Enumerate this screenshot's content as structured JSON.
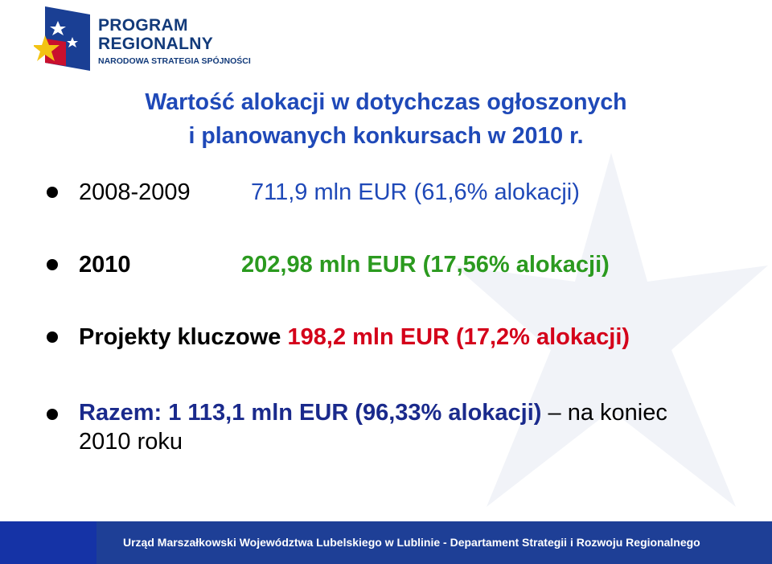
{
  "logo": {
    "line1": "PROGRAM",
    "line2": "REGIONALNY",
    "line3": "NARODOWA STRATEGIA SPÓJNOŚCI"
  },
  "title": {
    "line1": "Wartość alokacji w dotychczas ogłoszonych",
    "line2": "i planowanych konkursach w 2010 r."
  },
  "items": [
    {
      "label": "2008-2009",
      "value": "711,9 mln EUR (61,6% alokacji)"
    },
    {
      "label": "2010",
      "value": "202,98 mln EUR (17,56% alokacji)"
    },
    {
      "label": "Projekty kluczowe",
      "value": "198,2 mln EUR (17,2% alokacji)"
    },
    {
      "label": "Razem: 1 113,1 mln EUR (96,33% alokacji)",
      "suffix": " – na koniec",
      "line2": "2010 roku"
    }
  ],
  "footer": {
    "text": "Urząd Marszałkowski Województwa Lubelskiego w Lublinie - Departament Strategii i Rozwoju Regionalnego"
  },
  "colors": {
    "title": "#1f49b8",
    "value_2008": "#1f49b8",
    "value_2010": "#2b9a1f",
    "value_key": "#d4001a",
    "total": "#1a2a8c",
    "footer_bg": "#1e3f96"
  }
}
